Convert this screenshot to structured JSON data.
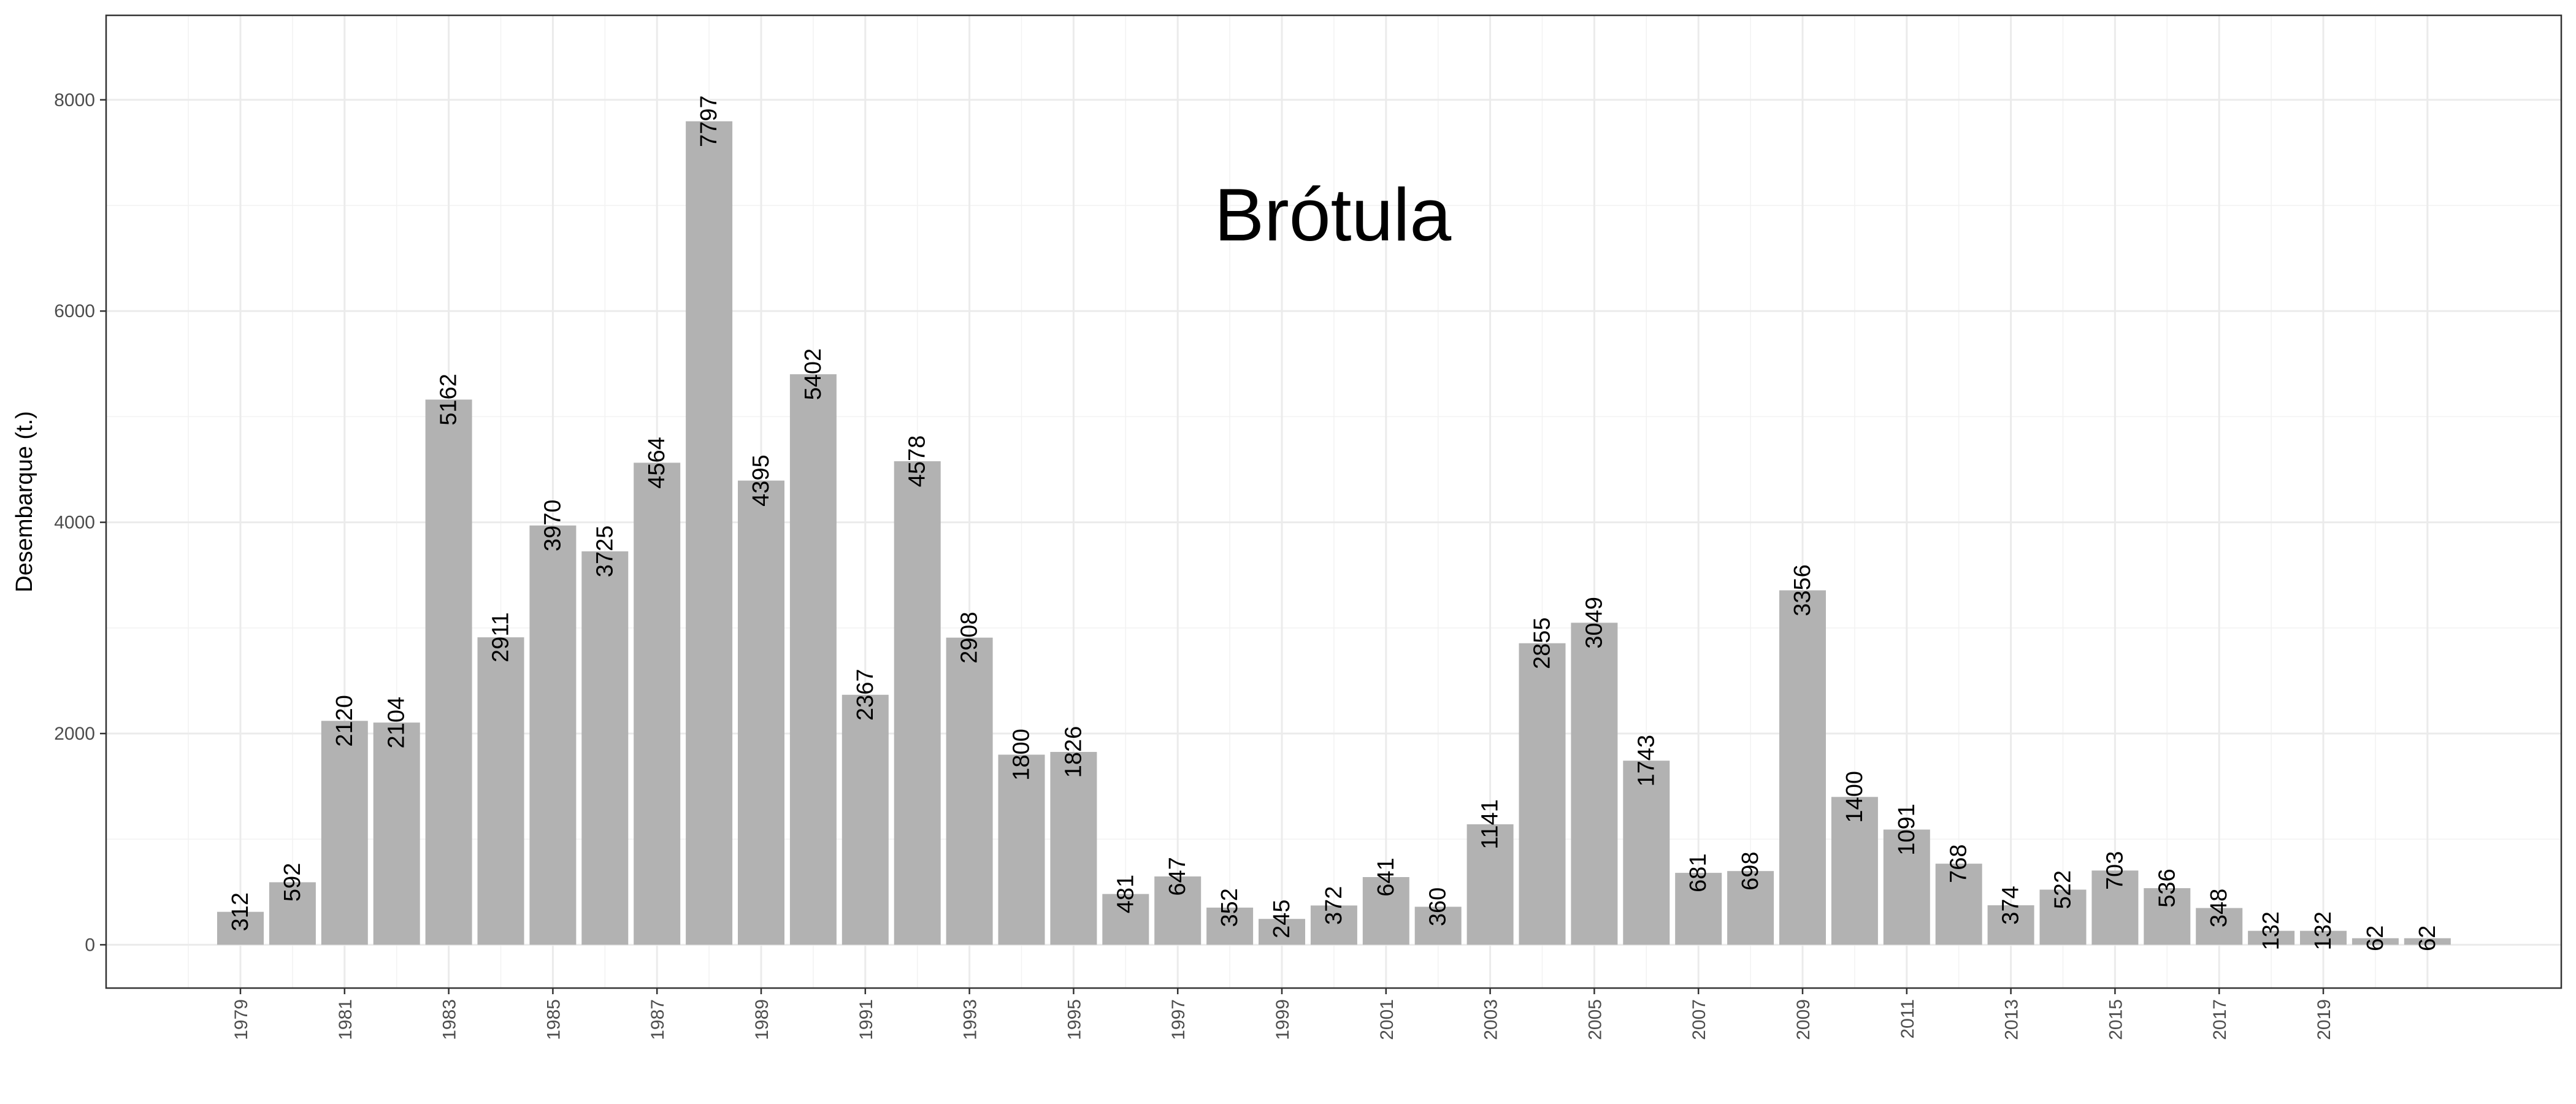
{
  "chart_data": {
    "type": "bar",
    "title": "Brótula",
    "ylabel": "Desembarque (t.)",
    "xlabel": "",
    "ylim": [
      -410,
      8800
    ],
    "yticks": [
      0,
      2000,
      4000,
      6000,
      8000
    ],
    "xtick_labels": [
      "1979",
      "1981",
      "1983",
      "1985",
      "1987",
      "1989",
      "1991",
      "1993",
      "1995",
      "1997",
      "1999",
      "2001",
      "2003",
      "2005",
      "2007",
      "2009",
      "2011",
      "2013",
      "2015",
      "2017",
      "2019"
    ],
    "grid": true,
    "bar_color": "#b2b2b2",
    "categories": [
      "1979",
      "1980",
      "1981",
      "1982",
      "1983",
      "1984",
      "1985",
      "1986",
      "1987",
      "1988",
      "1989",
      "1990",
      "1991",
      "1992",
      "1993",
      "1994",
      "1995",
      "1996",
      "1997",
      "1998",
      "1999",
      "2000",
      "2001",
      "2002",
      "2003",
      "2004",
      "2005",
      "2006",
      "2007",
      "2008",
      "2009",
      "2010",
      "2011",
      "2012",
      "2013",
      "2014",
      "2015",
      "2016",
      "2017",
      "2018",
      "2019",
      "2020",
      "2021"
    ],
    "values": [
      312,
      592,
      2120,
      2104,
      5162,
      2911,
      3970,
      3725,
      4564,
      7797,
      4395,
      5402,
      2367,
      4578,
      2908,
      1800,
      1826,
      481,
      647,
      352,
      245,
      372,
      641,
      360,
      1141,
      2855,
      3049,
      1743,
      681,
      698,
      3356,
      1400,
      1091,
      768,
      374,
      522,
      703,
      536,
      348,
      132,
      132,
      62,
      62
    ]
  }
}
